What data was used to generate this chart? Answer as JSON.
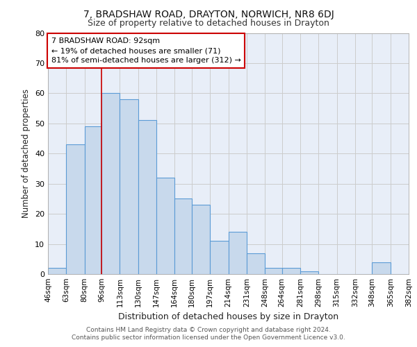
{
  "title_line1": "7, BRADSHAW ROAD, DRAYTON, NORWICH, NR8 6DJ",
  "title_line2": "Size of property relative to detached houses in Drayton",
  "xlabel": "Distribution of detached houses by size in Drayton",
  "ylabel": "Number of detached properties",
  "bar_labels": [
    "46sqm",
    "63sqm",
    "80sqm",
    "96sqm",
    "113sqm",
    "130sqm",
    "147sqm",
    "164sqm",
    "180sqm",
    "197sqm",
    "214sqm",
    "231sqm",
    "248sqm",
    "264sqm",
    "281sqm",
    "298sqm",
    "315sqm",
    "332sqm",
    "348sqm",
    "365sqm",
    "382sqm"
  ],
  "bar_heights": [
    2,
    43,
    49,
    60,
    58,
    51,
    32,
    25,
    23,
    11,
    14,
    7,
    2,
    2,
    1,
    0,
    0,
    0,
    4,
    0
  ],
  "bar_color": "#c8d9ec",
  "bar_edge_color": "#5b9bd5",
  "bin_edges": [
    46,
    63,
    80,
    96,
    113,
    130,
    147,
    164,
    180,
    197,
    214,
    231,
    248,
    264,
    281,
    298,
    315,
    332,
    348,
    365,
    382
  ],
  "annotation_text": "7 BRADSHAW ROAD: 92sqm\n← 19% of detached houses are smaller (71)\n81% of semi-detached houses are larger (312) →",
  "annotation_box_color": "#ffffff",
  "annotation_box_edge_color": "#cc0000",
  "vline_color": "#cc0000",
  "vline_x": 96,
  "ylim": [
    0,
    80
  ],
  "yticks": [
    0,
    10,
    20,
    30,
    40,
    50,
    60,
    70,
    80
  ],
  "grid_color": "#cccccc",
  "bg_color": "#e8eef8",
  "footnote1": "Contains HM Land Registry data © Crown copyright and database right 2024.",
  "footnote2": "Contains public sector information licensed under the Open Government Licence v3.0."
}
